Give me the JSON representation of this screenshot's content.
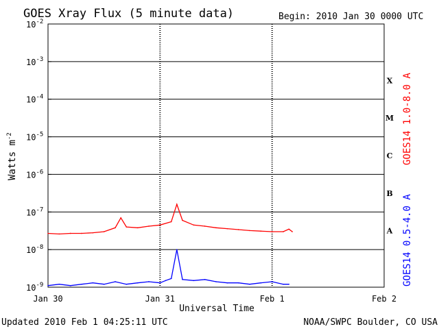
{
  "chart_data": {
    "type": "line",
    "title": "GOES Xray Flux (5 minute data)",
    "begin_label": "Begin:  2010 Jan 30 0000 UTC",
    "xlabel": "Universal Time",
    "ylabel_text": "Watts m",
    "ylabel_exp": "-2",
    "y_scale": "log",
    "ylim": [
      1e-09,
      0.01
    ],
    "y_ticks": [
      {
        "base": "10",
        "exp": "-2",
        "value": 0.01
      },
      {
        "base": "10",
        "exp": "-3",
        "value": 0.001
      },
      {
        "base": "10",
        "exp": "-4",
        "value": 0.0001
      },
      {
        "base": "10",
        "exp": "-5",
        "value": 1e-05
      },
      {
        "base": "10",
        "exp": "-6",
        "value": 1e-06
      },
      {
        "base": "10",
        "exp": "-7",
        "value": 1e-07
      },
      {
        "base": "10",
        "exp": "-8",
        "value": 1e-08
      },
      {
        "base": "10",
        "exp": "-9",
        "value": 1e-09
      }
    ],
    "x_unit": "days since 2010 Jan 30 0000 UTC",
    "xlim": [
      0,
      3
    ],
    "x_ticks": [
      {
        "label": "Jan 30",
        "value": 0
      },
      {
        "label": "Jan 31",
        "value": 1
      },
      {
        "label": "Feb 1",
        "value": 2
      },
      {
        "label": "Feb 2",
        "value": 3
      }
    ],
    "grid": true,
    "flare_classes": [
      {
        "label": "X",
        "min": 0.0001,
        "max": 0.001
      },
      {
        "label": "M",
        "min": 1e-05,
        "max": 0.0001
      },
      {
        "label": "C",
        "min": 1e-06,
        "max": 1e-05
      },
      {
        "label": "B",
        "min": 1e-07,
        "max": 1e-06
      },
      {
        "label": "A",
        "min": 1e-08,
        "max": 1e-07
      }
    ],
    "series": [
      {
        "name": "GOES14 1.0-8.0 A",
        "color": "#ff0000",
        "x": [
          0,
          0.1,
          0.2,
          0.3,
          0.4,
          0.5,
          0.6,
          0.65,
          0.7,
          0.8,
          0.9,
          1.0,
          1.1,
          1.15,
          1.2,
          1.3,
          1.4,
          1.5,
          1.6,
          1.7,
          1.8,
          1.9,
          2.0,
          2.1,
          2.15,
          2.18
        ],
        "y": [
          2.7e-08,
          2.6e-08,
          2.7e-08,
          2.7e-08,
          2.8e-08,
          3e-08,
          3.8e-08,
          7e-08,
          4e-08,
          3.8e-08,
          4.2e-08,
          4.5e-08,
          5.5e-08,
          1.6e-07,
          6e-08,
          4.5e-08,
          4.2e-08,
          3.8e-08,
          3.6e-08,
          3.4e-08,
          3.2e-08,
          3.1e-08,
          3e-08,
          3e-08,
          3.5e-08,
          3e-08
        ]
      },
      {
        "name": "GOES14 0.5-4.0 A",
        "color": "#0000ff",
        "x": [
          0,
          0.1,
          0.2,
          0.3,
          0.4,
          0.5,
          0.6,
          0.7,
          0.8,
          0.9,
          1.0,
          1.05,
          1.1,
          1.15,
          1.2,
          1.3,
          1.4,
          1.5,
          1.6,
          1.7,
          1.8,
          1.9,
          2.0,
          2.1,
          2.15
        ],
        "y": [
          1.1e-09,
          1.2e-09,
          1.1e-09,
          1.2e-09,
          1.3e-09,
          1.2e-09,
          1.4e-09,
          1.2e-09,
          1.3e-09,
          1.4e-09,
          1.3e-09,
          1.5e-09,
          1.7e-09,
          1e-08,
          1.6e-09,
          1.5e-09,
          1.6e-09,
          1.4e-09,
          1.3e-09,
          1.3e-09,
          1.2e-09,
          1.3e-09,
          1.4e-09,
          1.2e-09,
          1.2e-09
        ]
      }
    ]
  },
  "footer": {
    "updated": "Updated 2010 Feb  1 04:25:11 UTC",
    "credit": "NOAA/SWPC Boulder, CO USA"
  }
}
